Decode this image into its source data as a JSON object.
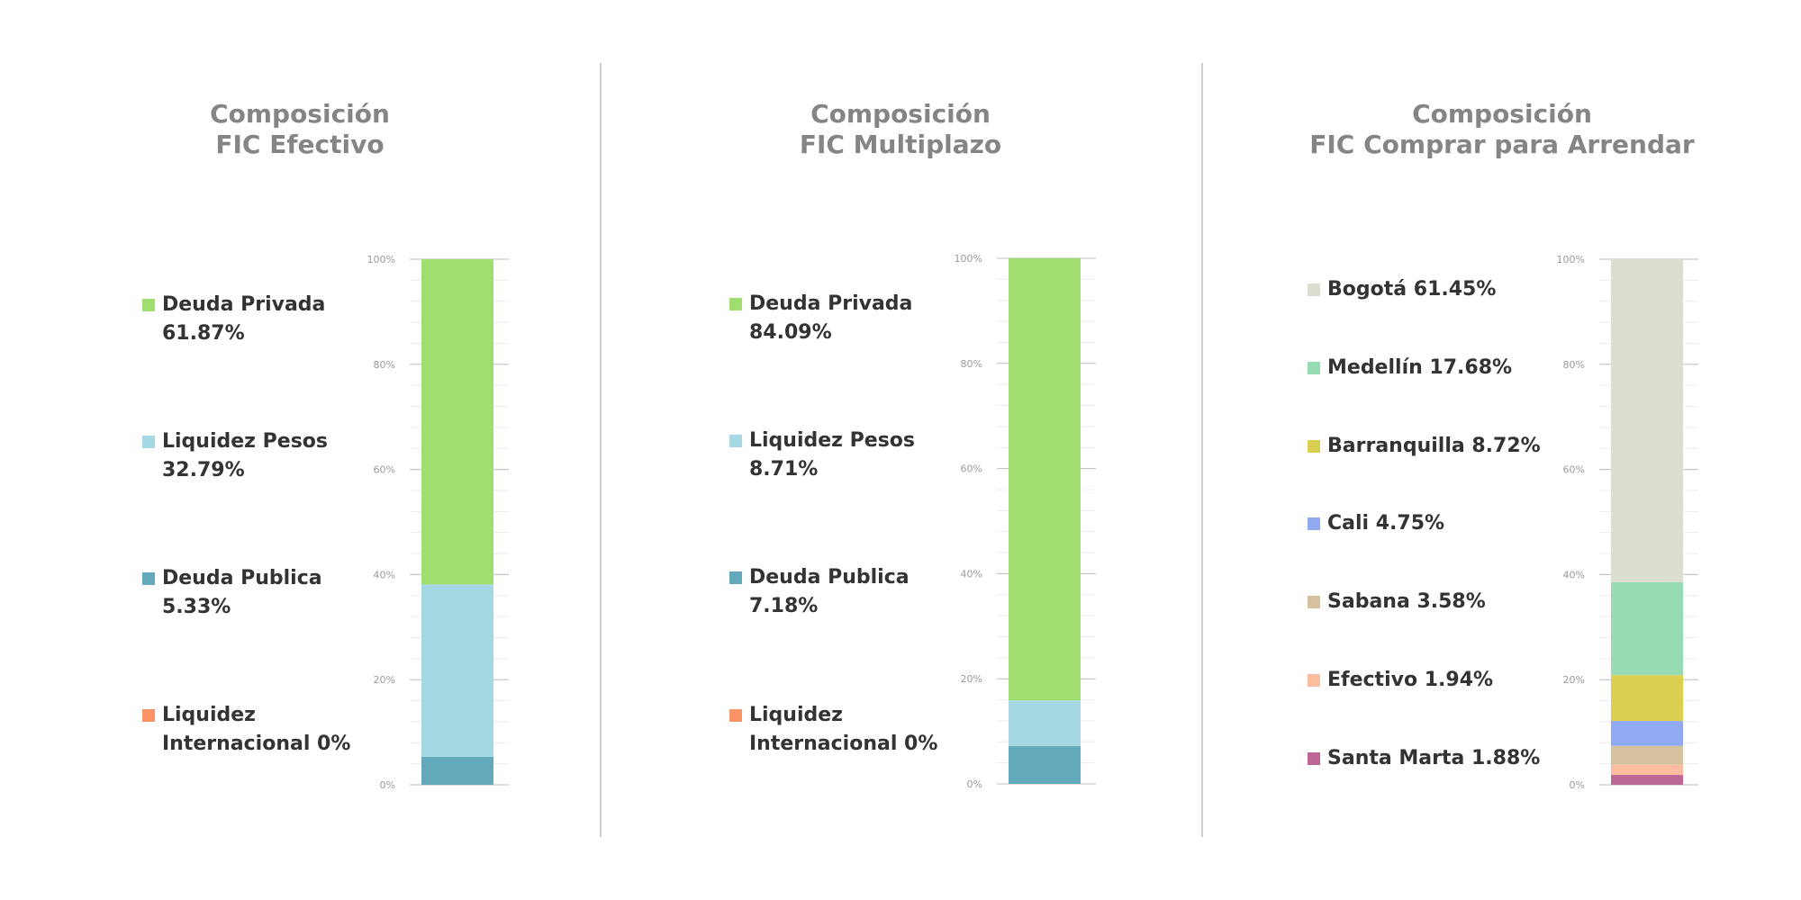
{
  "colors": {
    "deuda_privada": "#a1de70",
    "liquidez_pesos": "#a6d8e3",
    "deuda_publica": "#62aabb",
    "liquidez_internacional": "#fa9466",
    "bogota": "#dcdfd0",
    "medellin": "#97dbb3",
    "barranquilla": "#dbcf52",
    "cali": "#91a9f1",
    "sabana": "#d6c19e",
    "efectivo": "#fbbd9d",
    "santa_marta": "#bd6796"
  },
  "panels": [
    {
      "title_line1": "Composición",
      "title_line2": "FIC Efectivo",
      "legend": [
        {
          "line1": "Deuda Privada",
          "line2": "61.87%",
          "color": "#a1de70"
        },
        {
          "line1": "Liquidez Pesos",
          "line2": "32.79%",
          "color": "#a6d8e3"
        },
        {
          "line1": "Deuda Publica",
          "line2": "5.33%",
          "color": "#62aabb"
        },
        {
          "line1": "Liquidez",
          "line2": "Internacional 0%",
          "color": "#fa9466"
        }
      ]
    },
    {
      "title_line1": "Composición",
      "title_line2": "FIC Multiplazo",
      "legend": [
        {
          "line1": "Deuda Privada",
          "line2": "84.09%",
          "color": "#a1de70"
        },
        {
          "line1": "Liquidez Pesos",
          "line2": "8.71%",
          "color": "#a6d8e3"
        },
        {
          "line1": "Deuda Publica",
          "line2": "7.18%",
          "color": "#62aabb"
        },
        {
          "line1": "Liquidez",
          "line2": "Internacional 0%",
          "color": "#fa9466"
        }
      ]
    },
    {
      "title_line1": "Composición",
      "title_line2": "FIC Comprar para Arrendar",
      "legend": [
        {
          "line1": "Bogotá 61.45%",
          "color": "#dcdfd0"
        },
        {
          "line1": "Medellín 17.68%",
          "color": "#97dbb3"
        },
        {
          "line1": "Barranquilla 8.72%",
          "color": "#dbcf52"
        },
        {
          "line1": "Cali 4.75%",
          "color": "#91a9f1"
        },
        {
          "line1": "Sabana 3.58%",
          "color": "#d6c19e"
        },
        {
          "line1": "Efectivo 1.94%",
          "color": "#fbbd9d"
        },
        {
          "line1": "Santa Marta 1.88%",
          "color": "#bd6796"
        }
      ]
    }
  ],
  "chart_data": [
    {
      "type": "bar",
      "stacked": true,
      "title": "Composición FIC Efectivo",
      "ylim": [
        0,
        100
      ],
      "y_ticks": [
        "0%",
        "20%",
        "40%",
        "60%",
        "80%",
        "100%"
      ],
      "series": [
        {
          "name": "Deuda Publica",
          "value": 5.33,
          "color": "#62aabb"
        },
        {
          "name": "Liquidez Pesos",
          "value": 32.79,
          "color": "#a6d8e3"
        },
        {
          "name": "Deuda Privada",
          "value": 61.87,
          "color": "#a1de70"
        },
        {
          "name": "Liquidez Internacional",
          "value": 0,
          "color": "#fa9466"
        }
      ]
    },
    {
      "type": "bar",
      "stacked": true,
      "title": "Composición FIC Multiplazo",
      "ylim": [
        0,
        100
      ],
      "y_ticks": [
        "0%",
        "20%",
        "40%",
        "60%",
        "80%",
        "100%"
      ],
      "series": [
        {
          "name": "Deuda Publica",
          "value": 7.18,
          "color": "#62aabb"
        },
        {
          "name": "Liquidez Pesos",
          "value": 8.71,
          "color": "#a6d8e3"
        },
        {
          "name": "Deuda Privada",
          "value": 84.09,
          "color": "#a1de70"
        },
        {
          "name": "Liquidez Internacional",
          "value": 0,
          "color": "#fa9466"
        }
      ]
    },
    {
      "type": "bar",
      "stacked": true,
      "title": "Composición FIC Comprar para Arrendar",
      "ylim": [
        0,
        100
      ],
      "y_ticks": [
        "0%",
        "20%",
        "40%",
        "60%",
        "80%",
        "100%"
      ],
      "series": [
        {
          "name": "Santa Marta",
          "value": 1.88,
          "color": "#bd6796"
        },
        {
          "name": "Efectivo",
          "value": 1.94,
          "color": "#fbbd9d"
        },
        {
          "name": "Sabana",
          "value": 3.58,
          "color": "#d6c19e"
        },
        {
          "name": "Cali",
          "value": 4.75,
          "color": "#91a9f1"
        },
        {
          "name": "Barranquilla",
          "value": 8.72,
          "color": "#dbcf52"
        },
        {
          "name": "Medellín",
          "value": 17.68,
          "color": "#97dbb3"
        },
        {
          "name": "Bogotá",
          "value": 61.45,
          "color": "#dcdfd0"
        }
      ]
    }
  ]
}
